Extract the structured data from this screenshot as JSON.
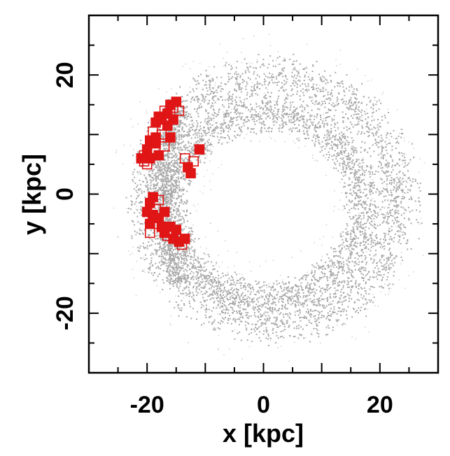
{
  "chart_data": {
    "type": "scatter",
    "title": "",
    "xlabel": "x [kpc]",
    "ylabel": "y [kpc]",
    "xlim": [
      -30,
      30
    ],
    "ylim": [
      -30,
      30
    ],
    "x_ticks": [
      -20,
      0,
      20
    ],
    "y_ticks": [
      -20,
      0,
      20
    ],
    "x_tick_labels": [
      "-20",
      "0",
      "20"
    ],
    "y_tick_labels": [
      "-20",
      "0",
      "20"
    ],
    "grid": false,
    "legend": "none",
    "colors": {
      "background": "#ffffff",
      "particles": "#a8a8a8",
      "markers": "#e01515"
    },
    "series": [
      {
        "marker": "gray-dot",
        "description": "debris ring particles",
        "rings": [
          {
            "center": [
              0.5,
              -2
            ],
            "rx": 16.5,
            "ry": 15.5,
            "width": 3.5
          },
          {
            "center": [
              1.5,
              -1
            ],
            "rx": 21.5,
            "ry": 20.5,
            "width": 4.5
          }
        ],
        "inner_arc": {
          "center": [
            -17,
            0
          ],
          "y_range": [
            -15,
            15
          ]
        }
      },
      {
        "marker": "red-square",
        "points": [
          [
            -20.5,
            6.5
          ],
          [
            -20.0,
            7.5
          ],
          [
            -19.5,
            9.0
          ],
          [
            -19.0,
            10.5
          ],
          [
            -18.5,
            12.0
          ],
          [
            -18.0,
            13.0
          ],
          [
            -17.0,
            14.0
          ],
          [
            -16.0,
            15.0
          ],
          [
            -15.0,
            15.5
          ],
          [
            -14.5,
            14.0
          ],
          [
            -15.5,
            12.5
          ],
          [
            -16.5,
            11.5
          ],
          [
            -17.5,
            10.0
          ],
          [
            -18.5,
            8.5
          ],
          [
            -19.5,
            6.0
          ],
          [
            -20.0,
            5.0
          ],
          [
            -21.0,
            6.0
          ],
          [
            -18.0,
            6.5
          ],
          [
            -17.0,
            8.0
          ],
          [
            -16.0,
            9.5
          ],
          [
            -13.0,
            4.5
          ],
          [
            -12.0,
            5.5
          ],
          [
            -11.0,
            7.5
          ],
          [
            -12.5,
            3.5
          ],
          [
            -13.5,
            6.0
          ],
          [
            -19.0,
            -0.5
          ],
          [
            -19.5,
            -1.5
          ],
          [
            -18.5,
            -2.5
          ],
          [
            -19.0,
            -3.5
          ],
          [
            -18.0,
            -4.0
          ],
          [
            -18.5,
            -5.0
          ],
          [
            -17.5,
            -5.5
          ],
          [
            -17.0,
            -6.5
          ],
          [
            -16.5,
            -7.0
          ],
          [
            -15.5,
            -7.5
          ],
          [
            -14.5,
            -8.0
          ],
          [
            -14.0,
            -8.5
          ],
          [
            -19.5,
            -5.0
          ],
          [
            -20.0,
            -3.0
          ],
          [
            -18.0,
            -1.0
          ],
          [
            -17.0,
            -3.0
          ],
          [
            -16.0,
            -5.5
          ],
          [
            -19.5,
            -6.5
          ],
          [
            -15.0,
            -6.0
          ],
          [
            -13.5,
            -7.5
          ],
          [
            -20.5,
            5.5
          ],
          [
            -18.5,
            9.5
          ],
          [
            -17.5,
            12.5
          ],
          [
            -15.5,
            14.5
          ],
          [
            -16.5,
            13.5
          ]
        ]
      }
    ]
  }
}
